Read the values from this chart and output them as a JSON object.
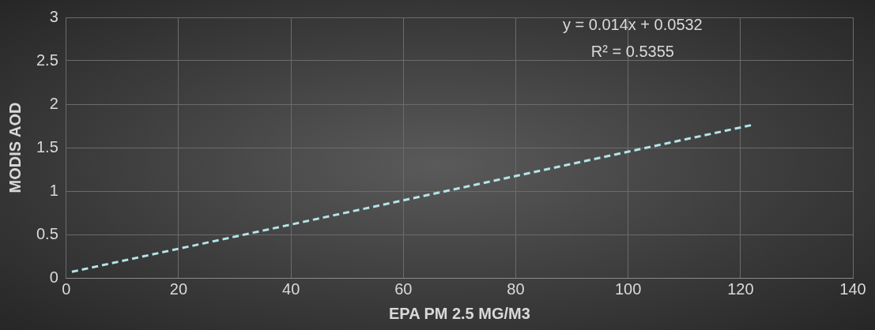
{
  "chart_data": {
    "type": "line",
    "xlabel": "EPA PM 2.5 MG/M3",
    "ylabel": "MODIS AOD",
    "annotations": [
      "y = 0.014x + 0.0532",
      "R² = 0.5355"
    ],
    "series": [
      {
        "type": "line",
        "color": "#b4e4e8",
        "x": [
          1,
          122
        ],
        "values": [
          0.07,
          1.76
        ]
      }
    ],
    "xlim": [
      0,
      140
    ],
    "xticks": [
      0,
      20,
      40,
      60,
      80,
      100,
      120,
      140
    ],
    "ylim": [
      0,
      3
    ],
    "yticks": [
      0,
      0.5,
      1,
      1.5,
      2,
      2.5,
      3
    ],
    "grid": true,
    "legend": false,
    "marker": "none",
    "line_style": "dashed"
  }
}
